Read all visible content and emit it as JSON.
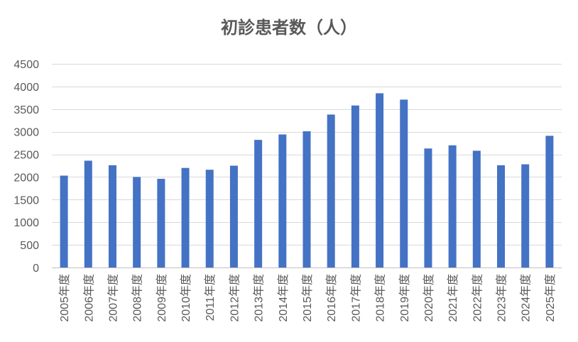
{
  "chart_data": {
    "type": "bar",
    "title": "初診患者数（人）",
    "xlabel": "",
    "ylabel": "",
    "ylim": [
      0,
      4500
    ],
    "yticks": [
      0,
      500,
      1000,
      1500,
      2000,
      2500,
      3000,
      3500,
      4000,
      4500
    ],
    "grid": true,
    "legend": "none",
    "bar_color": "#4472c4",
    "categories": [
      "2005年度",
      "2006年度",
      "2007年度",
      "2008年度",
      "2009年度",
      "2010年度",
      "2011年度",
      "2012年度",
      "2013年度",
      "2014年度",
      "2015年度",
      "2016年度",
      "2017年度",
      "2018年度",
      "2019年度",
      "2020年度",
      "2021年度",
      "2022年度",
      "2023年度",
      "2024年度",
      "2025年度"
    ],
    "values": [
      2030,
      2360,
      2260,
      2000,
      1960,
      2200,
      2160,
      2250,
      2820,
      2940,
      3010,
      3380,
      3580,
      3850,
      3710,
      2630,
      2700,
      2580,
      2260,
      2280,
      2910
    ]
  }
}
